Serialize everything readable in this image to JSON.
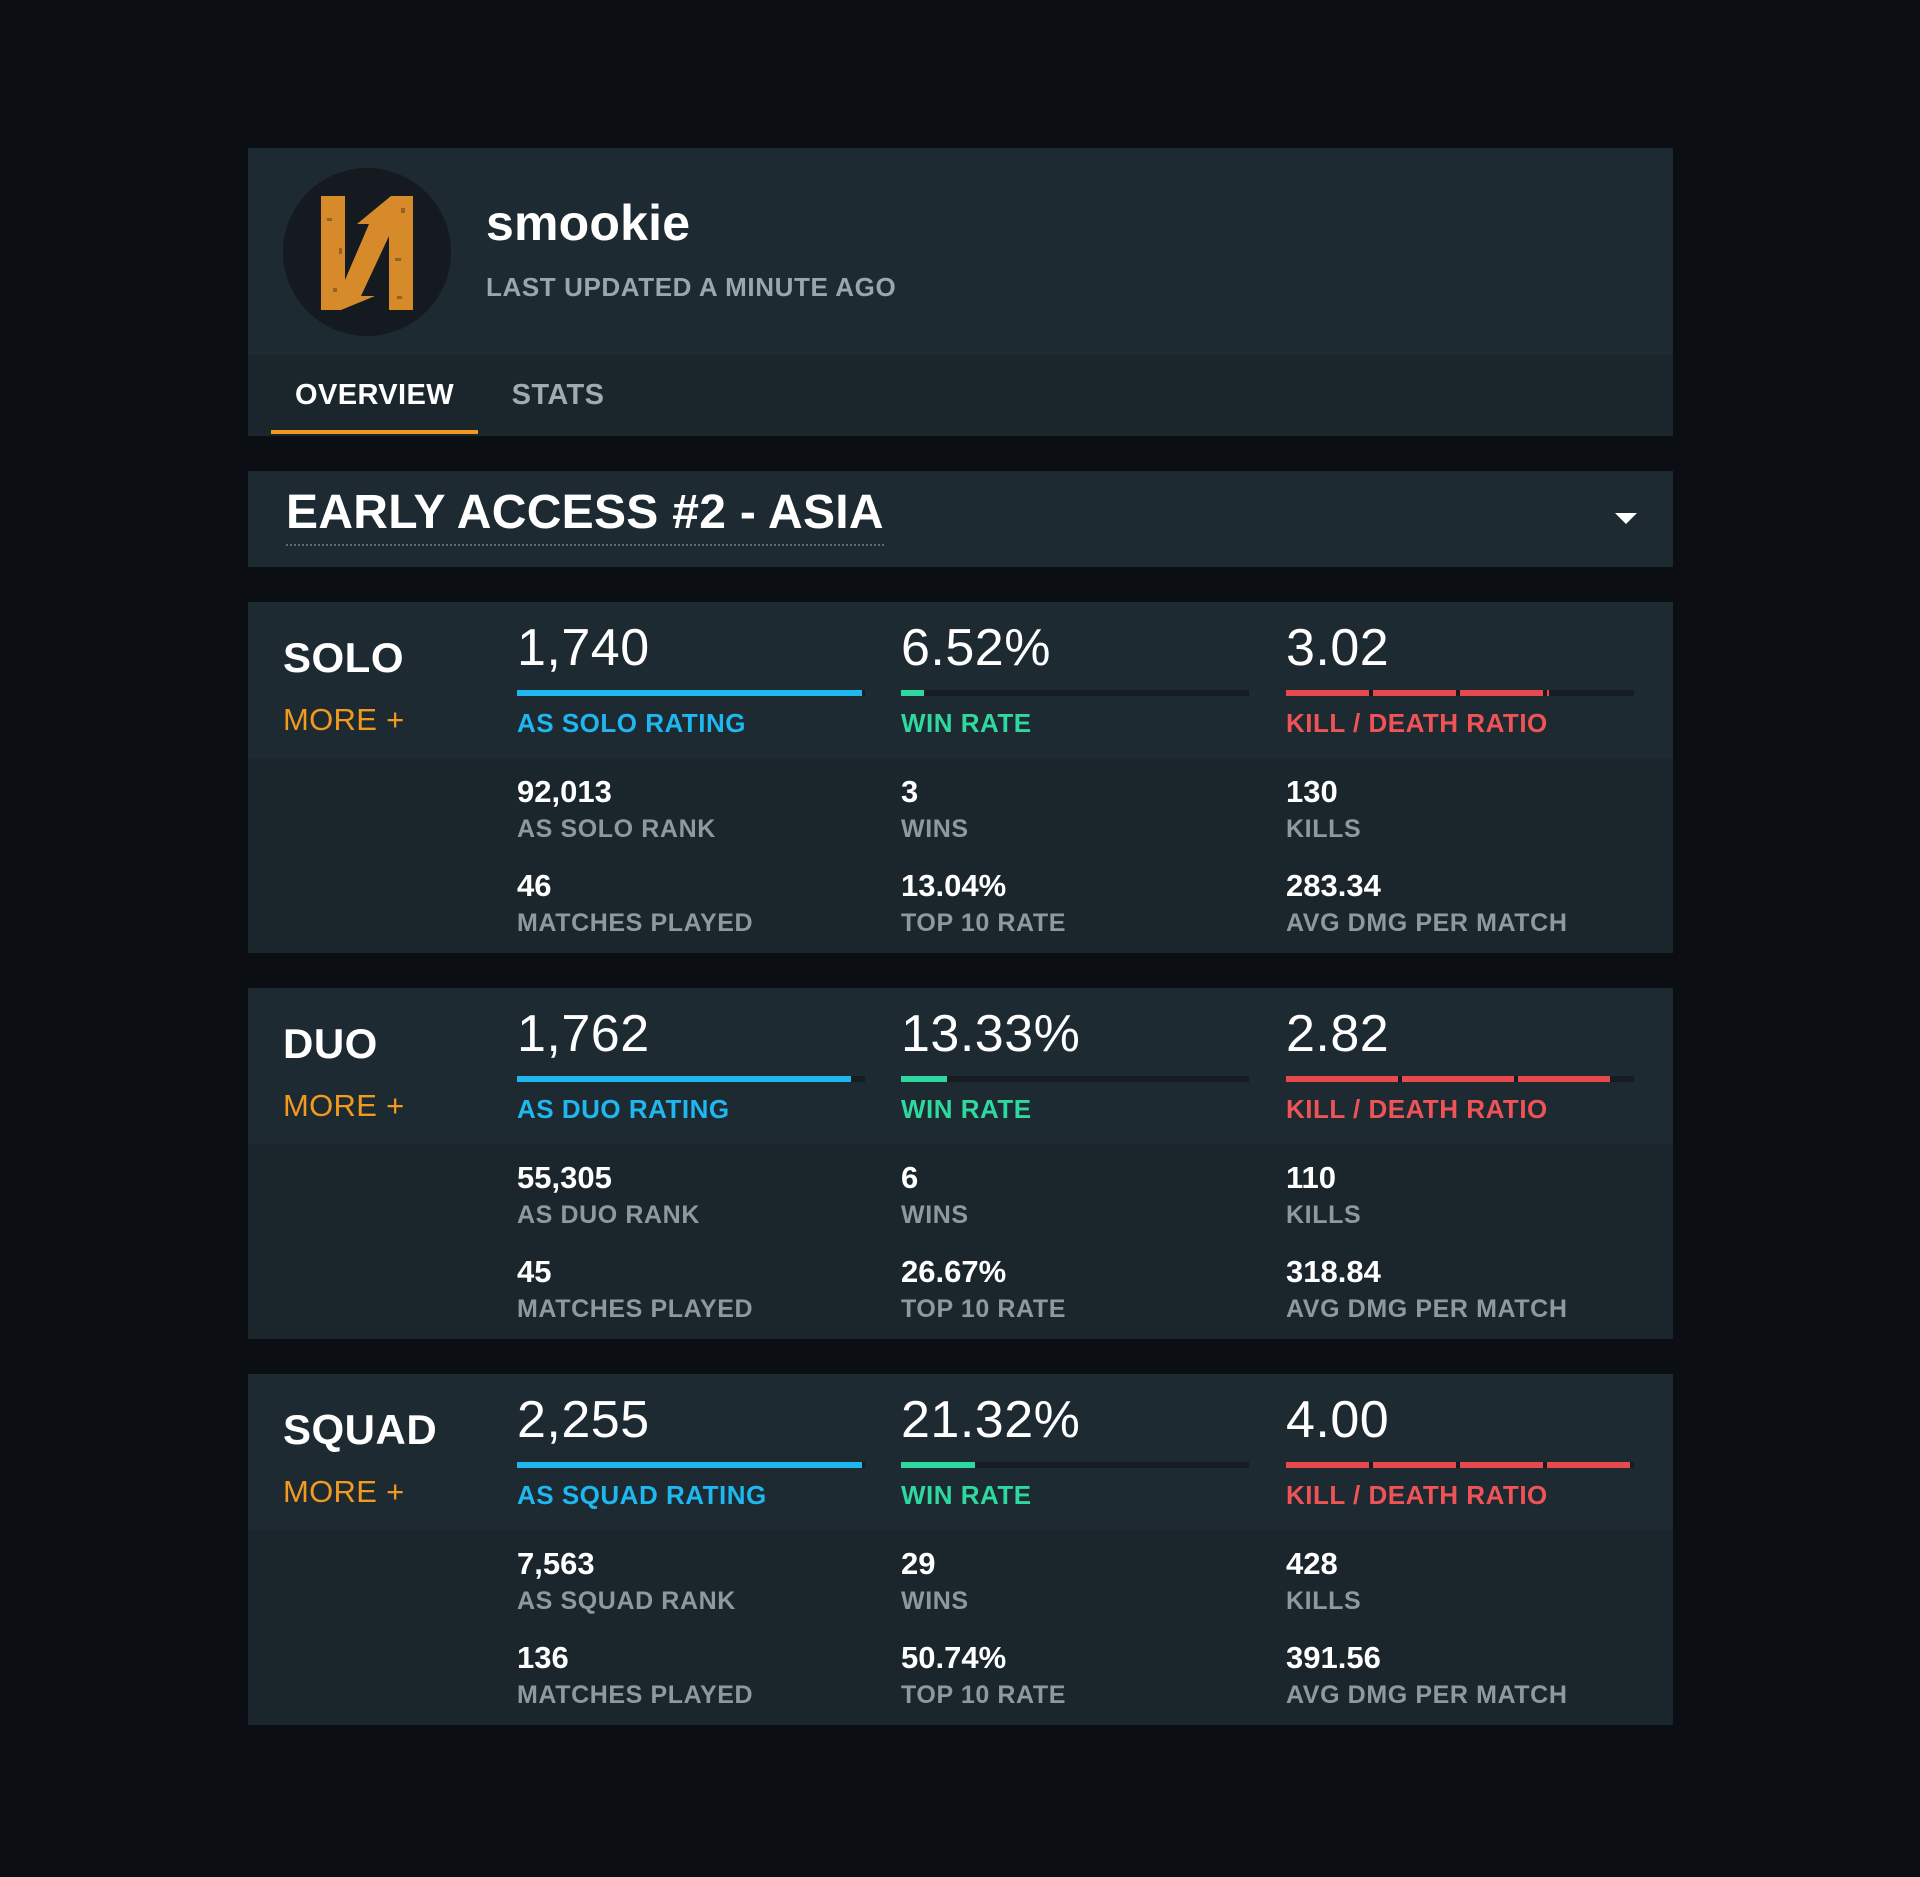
{
  "profile": {
    "username": "smookie",
    "last_updated": "LAST UPDATED A MINUTE AGO",
    "avatar_icon": "orange-n-logo",
    "avatar_color": "#d78a2a"
  },
  "tabs": [
    {
      "label": "OVERVIEW",
      "active": true
    },
    {
      "label": "STATS",
      "active": false
    }
  ],
  "season": {
    "selected": "EARLY ACCESS #2 - ASIA"
  },
  "colors": {
    "accent_orange": "#f29a1f",
    "rating_blue": "#1fb7f0",
    "winrate_green": "#2ed89f",
    "kd_red": "#ef5356"
  },
  "modes": [
    {
      "name": "SOLO",
      "more": "MORE +",
      "rating": {
        "value": "1,740",
        "label": "AS SOLO RATING",
        "fill": 0.99
      },
      "win_rate": {
        "value": "6.52%",
        "label": "WIN RATE",
        "fill": 0.0652
      },
      "kd": {
        "value": "3.02",
        "label": "KILL / DEATH RATIO",
        "max": 4
      },
      "rank": {
        "value": "92,013",
        "label": "AS SOLO RANK"
      },
      "matches": {
        "value": "46",
        "label": "MATCHES PLAYED"
      },
      "wins": {
        "value": "3",
        "label": "WINS"
      },
      "top10": {
        "value": "13.04%",
        "label": "TOP 10 RATE"
      },
      "kills": {
        "value": "130",
        "label": "KILLS"
      },
      "avg_dmg": {
        "value": "283.34",
        "label": "AVG DMG PER MATCH"
      }
    },
    {
      "name": "DUO",
      "more": "MORE +",
      "rating": {
        "value": "1,762",
        "label": "AS DUO RATING",
        "fill": 0.96
      },
      "win_rate": {
        "value": "13.33%",
        "label": "WIN RATE",
        "fill": 0.1333
      },
      "kd": {
        "value": "2.82",
        "label": "KILL / DEATH RATIO",
        "max": 3
      },
      "rank": {
        "value": "55,305",
        "label": "AS DUO RANK"
      },
      "matches": {
        "value": "45",
        "label": "MATCHES PLAYED"
      },
      "wins": {
        "value": "6",
        "label": "WINS"
      },
      "top10": {
        "value": "26.67%",
        "label": "TOP 10 RATE"
      },
      "kills": {
        "value": "110",
        "label": "KILLS"
      },
      "avg_dmg": {
        "value": "318.84",
        "label": "AVG DMG PER MATCH"
      }
    },
    {
      "name": "SQUAD",
      "more": "MORE +",
      "rating": {
        "value": "2,255",
        "label": "AS SQUAD RATING",
        "fill": 0.99
      },
      "win_rate": {
        "value": "21.32%",
        "label": "WIN RATE",
        "fill": 0.2132
      },
      "kd": {
        "value": "4.00",
        "label": "KILL / DEATH RATIO",
        "max": 4
      },
      "rank": {
        "value": "7,563",
        "label": "AS SQUAD RANK"
      },
      "matches": {
        "value": "136",
        "label": "MATCHES PLAYED"
      },
      "wins": {
        "value": "29",
        "label": "WINS"
      },
      "top10": {
        "value": "50.74%",
        "label": "TOP 10 RATE"
      },
      "kills": {
        "value": "428",
        "label": "KILLS"
      },
      "avg_dmg": {
        "value": "391.56",
        "label": "AVG DMG PER MATCH"
      }
    }
  ]
}
